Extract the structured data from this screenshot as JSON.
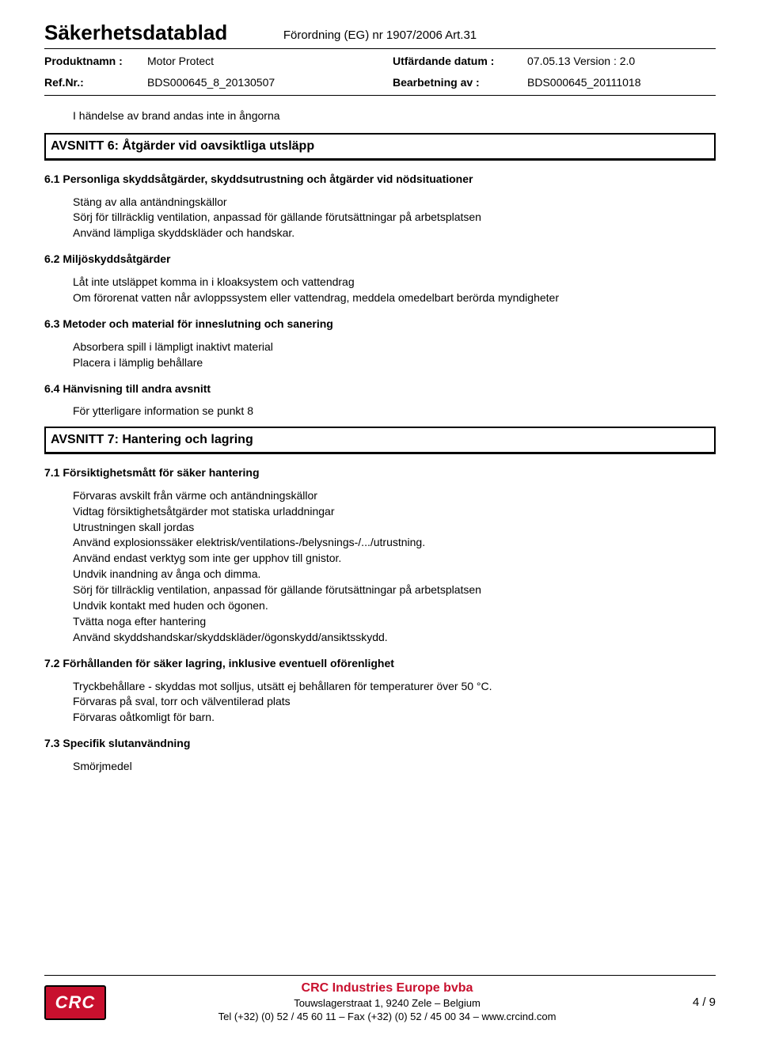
{
  "header": {
    "doc_title": "Säkerhetsdatablad",
    "regulation": "Förordning (EG) nr 1907/2006 Art.31",
    "rows": [
      {
        "label": "Produktnamn :",
        "value": "Motor Protect",
        "label2": "Utfärdande datum :",
        "value2": "07.05.13 Version : 2.0"
      },
      {
        "label": "Ref.Nr.:",
        "value": "BDS000645_8_20130507",
        "label2": "Bearbetning av :",
        "value2": "BDS000645_20111018"
      }
    ]
  },
  "intro_line": "I händelse av brand andas inte in ångorna",
  "section6": {
    "title": "AVSNITT 6: Åtgärder vid oavsiktliga utsläpp",
    "s6_1": {
      "heading": "6.1 Personliga skyddsåtgärder, skyddsutrustning och åtgärder vid nödsituationer",
      "lines": [
        "Stäng av alla antändningskällor",
        "Sörj för tillräcklig ventilation, anpassad för gällande förutsättningar på arbetsplatsen",
        "Använd lämpliga skyddskläder och handskar."
      ]
    },
    "s6_2": {
      "heading": "6.2 Miljöskyddsåtgärder",
      "lines": [
        "Låt inte utsläppet komma in i kloaksystem och vattendrag",
        "Om förorenat vatten når avloppssystem eller vattendrag, meddela omedelbart berörda myndigheter"
      ]
    },
    "s6_3": {
      "heading": "6.3 Metoder och material för inneslutning och sanering",
      "lines": [
        "Absorbera spill i lämpligt inaktivt material",
        "Placera i lämplig behållare"
      ]
    },
    "s6_4": {
      "heading": "6.4 Hänvisning till andra avsnitt",
      "lines": [
        "För ytterligare information se punkt 8"
      ]
    }
  },
  "section7": {
    "title": "AVSNITT 7: Hantering och lagring",
    "s7_1": {
      "heading": "7.1 Försiktighetsmått för säker hantering",
      "lines": [
        "Förvaras avskilt från värme och antändningskällor",
        "Vidtag försiktighetsåtgärder mot statiska urladdningar",
        "Utrustningen skall jordas",
        "Använd explosionssäker elektrisk/ventilations-/belysnings-/.../utrustning.",
        "Använd endast verktyg som inte ger upphov till gnistor.",
        "Undvik inandning av ånga och dimma.",
        "Sörj för tillräcklig ventilation, anpassad för gällande förutsättningar på arbetsplatsen",
        "Undvik kontakt med huden och ögonen.",
        "Tvätta noga efter hantering",
        "Använd skyddshandskar/skyddskläder/ögonskydd/ansiktsskydd."
      ]
    },
    "s7_2": {
      "heading": "7.2 Förhållanden för säker lagring, inklusive eventuell oförenlighet",
      "lines": [
        "Tryckbehållare - skyddas mot solljus, utsätt ej behållaren för temperaturer över 50 °C.",
        "Förvaras på sval, torr och välventilerad plats",
        "Förvaras oåtkomligt för barn."
      ]
    },
    "s7_3": {
      "heading": "7.3 Specifik slutanvändning",
      "lines": [
        "Smörjmedel"
      ]
    }
  },
  "footer": {
    "logo_text": "CRC",
    "company": "CRC Industries Europe bvba",
    "address": "Touwslagerstraat 1,  9240 Zele – Belgium",
    "contact": "Tel (+32) (0) 52 / 45 60 11 – Fax (+32) (0) 52 / 45 00 34 – www.crcind.com",
    "page_num": "4 / 9"
  }
}
